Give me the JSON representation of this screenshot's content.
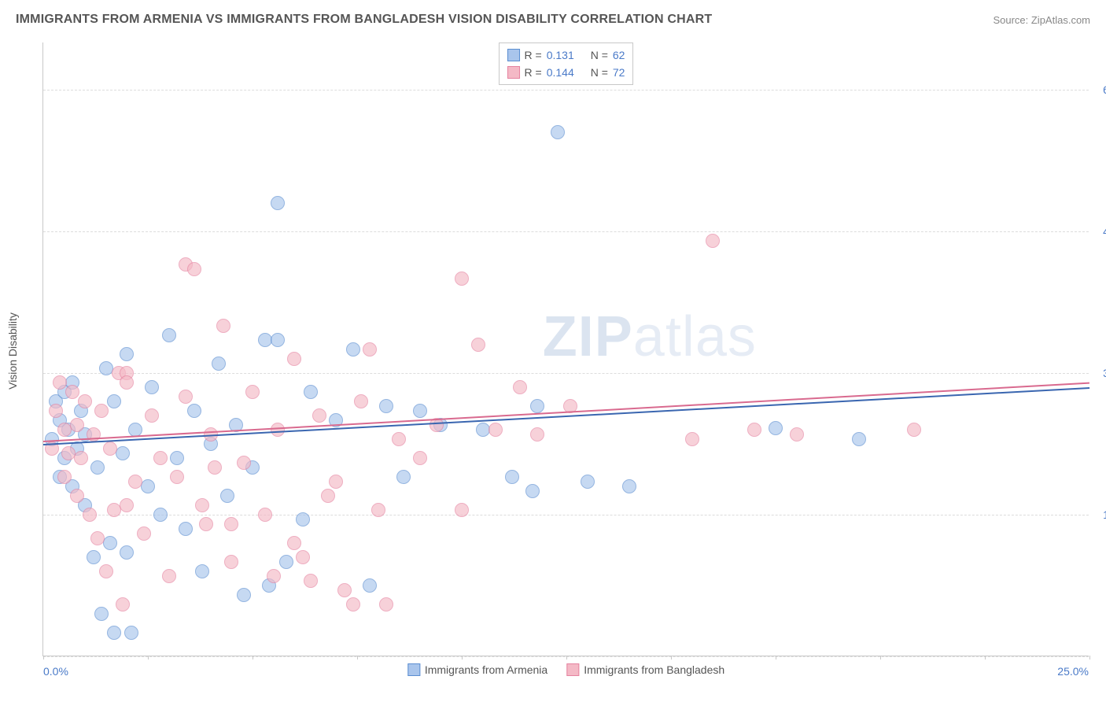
{
  "header": {
    "title": "IMMIGRANTS FROM ARMENIA VS IMMIGRANTS FROM BANGLADESH VISION DISABILITY CORRELATION CHART",
    "source": "Source: ZipAtlas.com"
  },
  "chart": {
    "type": "scatter",
    "y_axis_title": "Vision Disability",
    "xlim": [
      0,
      25
    ],
    "ylim": [
      0,
      6.5
    ],
    "x_label_min": "0.0%",
    "x_label_max": "25.0%",
    "y_ticks": [
      {
        "v": 0.0,
        "label": ""
      },
      {
        "v": 1.5,
        "label": "1.5%"
      },
      {
        "v": 3.0,
        "label": "3.0%"
      },
      {
        "v": 4.5,
        "label": "4.5%"
      },
      {
        "v": 6.0,
        "label": "6.0%"
      }
    ],
    "x_tick_positions": [
      0,
      2.5,
      5,
      7.5,
      10,
      12.5,
      15,
      17.5,
      20,
      22.5,
      25
    ],
    "grid_color": "#dcdcdc",
    "axis_color": "#c8c8c8",
    "background_color": "#ffffff",
    "marker_radius": 9,
    "series": [
      {
        "name": "Immigrants from Armenia",
        "fill": "#a9c5ec",
        "stroke": "#5b8ed1",
        "trend_color": "#3a66b0",
        "r_value": "0.131",
        "n_value": "62",
        "trend": {
          "x1": 0,
          "y1": 2.25,
          "x2": 25,
          "y2": 2.85
        },
        "points": [
          [
            0.2,
            2.3
          ],
          [
            0.3,
            2.7
          ],
          [
            0.4,
            1.9
          ],
          [
            0.4,
            2.5
          ],
          [
            0.5,
            2.1
          ],
          [
            0.5,
            2.8
          ],
          [
            0.6,
            2.4
          ],
          [
            0.7,
            1.8
          ],
          [
            0.7,
            2.9
          ],
          [
            0.8,
            2.2
          ],
          [
            0.9,
            2.6
          ],
          [
            1.0,
            1.6
          ],
          [
            1.0,
            2.35
          ],
          [
            1.2,
            1.05
          ],
          [
            1.3,
            2.0
          ],
          [
            1.4,
            0.45
          ],
          [
            1.5,
            3.05
          ],
          [
            1.6,
            1.2
          ],
          [
            1.7,
            2.7
          ],
          [
            1.7,
            0.25
          ],
          [
            1.9,
            2.15
          ],
          [
            2.0,
            1.1
          ],
          [
            2.0,
            3.2
          ],
          [
            2.2,
            2.4
          ],
          [
            2.1,
            0.25
          ],
          [
            2.5,
            1.8
          ],
          [
            2.6,
            2.85
          ],
          [
            2.8,
            1.5
          ],
          [
            3.0,
            3.4
          ],
          [
            3.2,
            2.1
          ],
          [
            3.4,
            1.35
          ],
          [
            3.6,
            2.6
          ],
          [
            3.8,
            0.9
          ],
          [
            4.0,
            2.25
          ],
          [
            4.2,
            3.1
          ],
          [
            4.4,
            1.7
          ],
          [
            4.6,
            2.45
          ],
          [
            4.8,
            0.65
          ],
          [
            5.0,
            2.0
          ],
          [
            5.3,
            3.35
          ],
          [
            5.4,
            0.75
          ],
          [
            5.8,
            1.0
          ],
          [
            5.6,
            4.8
          ],
          [
            5.6,
            3.35
          ],
          [
            6.2,
            1.45
          ],
          [
            6.4,
            2.8
          ],
          [
            7.0,
            2.5
          ],
          [
            7.4,
            3.25
          ],
          [
            7.8,
            0.75
          ],
          [
            8.2,
            2.65
          ],
          [
            8.6,
            1.9
          ],
          [
            9.0,
            2.6
          ],
          [
            9.5,
            2.45
          ],
          [
            10.5,
            2.4
          ],
          [
            11.2,
            1.9
          ],
          [
            11.7,
            1.75
          ],
          [
            11.8,
            2.65
          ],
          [
            12.3,
            5.55
          ],
          [
            13.0,
            1.85
          ],
          [
            14.0,
            1.8
          ],
          [
            17.5,
            2.42
          ],
          [
            19.5,
            2.3
          ]
        ]
      },
      {
        "name": "Immigrants from Bangladesh",
        "fill": "#f4b9c6",
        "stroke": "#e583a0",
        "trend_color": "#d96a8f",
        "r_value": "0.144",
        "n_value": "72",
        "trend": {
          "x1": 0,
          "y1": 2.28,
          "x2": 25,
          "y2": 2.9
        },
        "points": [
          [
            0.2,
            2.2
          ],
          [
            0.3,
            2.6
          ],
          [
            0.4,
            2.9
          ],
          [
            0.5,
            1.9
          ],
          [
            0.5,
            2.4
          ],
          [
            0.6,
            2.15
          ],
          [
            0.7,
            2.8
          ],
          [
            0.8,
            1.7
          ],
          [
            0.8,
            2.45
          ],
          [
            0.9,
            2.1
          ],
          [
            1.0,
            2.7
          ],
          [
            1.1,
            1.5
          ],
          [
            1.2,
            2.35
          ],
          [
            1.3,
            1.25
          ],
          [
            1.4,
            2.6
          ],
          [
            1.5,
            0.9
          ],
          [
            1.6,
            2.2
          ],
          [
            1.7,
            1.55
          ],
          [
            1.8,
            3.0
          ],
          [
            1.9,
            0.55
          ],
          [
            2.0,
            3.0
          ],
          [
            2.0,
            1.6
          ],
          [
            2.0,
            2.9
          ],
          [
            2.2,
            1.85
          ],
          [
            2.4,
            1.3
          ],
          [
            2.6,
            2.55
          ],
          [
            2.8,
            2.1
          ],
          [
            3.0,
            0.85
          ],
          [
            3.2,
            1.9
          ],
          [
            3.4,
            2.75
          ],
          [
            3.4,
            4.15
          ],
          [
            3.6,
            4.1
          ],
          [
            3.8,
            1.6
          ],
          [
            3.9,
            1.4
          ],
          [
            4.0,
            2.35
          ],
          [
            4.3,
            3.5
          ],
          [
            4.5,
            1.0
          ],
          [
            4.5,
            1.4
          ],
          [
            4.8,
            2.05
          ],
          [
            5.0,
            2.8
          ],
          [
            5.3,
            1.5
          ],
          [
            5.6,
            2.4
          ],
          [
            5.5,
            0.85
          ],
          [
            6.0,
            3.15
          ],
          [
            6.0,
            1.2
          ],
          [
            6.2,
            1.05
          ],
          [
            6.4,
            0.8
          ],
          [
            6.6,
            2.55
          ],
          [
            7.0,
            1.85
          ],
          [
            7.2,
            0.7
          ],
          [
            7.4,
            0.55
          ],
          [
            7.6,
            2.7
          ],
          [
            8.0,
            1.55
          ],
          [
            8.2,
            0.55
          ],
          [
            8.5,
            2.3
          ],
          [
            9.0,
            2.1
          ],
          [
            10.0,
            4.0
          ],
          [
            10.0,
            1.55
          ],
          [
            10.4,
            3.3
          ],
          [
            10.8,
            2.4
          ],
          [
            11.4,
            2.85
          ],
          [
            11.8,
            2.35
          ],
          [
            12.6,
            2.65
          ],
          [
            15.5,
            2.3
          ],
          [
            16.0,
            4.4
          ],
          [
            17.0,
            2.4
          ],
          [
            18.0,
            2.35
          ],
          [
            20.8,
            2.4
          ],
          [
            7.8,
            3.25
          ],
          [
            9.4,
            2.45
          ],
          [
            6.8,
            1.7
          ],
          [
            4.1,
            2.0
          ]
        ]
      }
    ],
    "watermark": {
      "zip": "ZIP",
      "atlas": "atlas"
    }
  }
}
